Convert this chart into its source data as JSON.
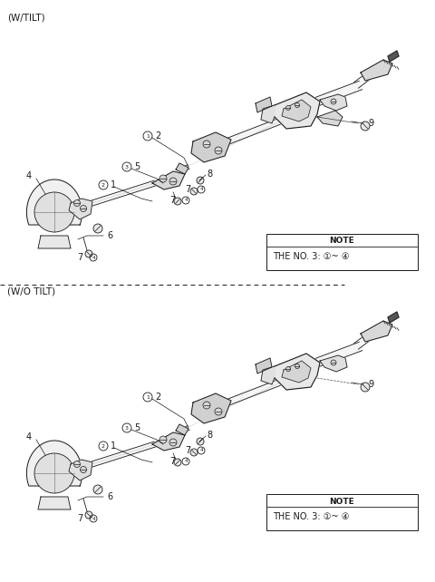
{
  "background_color": "#ffffff",
  "figure_width": 4.8,
  "figure_height": 6.42,
  "dpi": 100,
  "line_color": "#1a1a1a",
  "text_color": "#1a1a1a",
  "section1_label": "(W/TILT)",
  "section2_label": "(W/O TILT)",
  "note_line1": "NOTE",
  "note_line2": "THE NO. 3: ①~ ④",
  "label_fontsize": 7.0,
  "section_fontsize": 7.5
}
